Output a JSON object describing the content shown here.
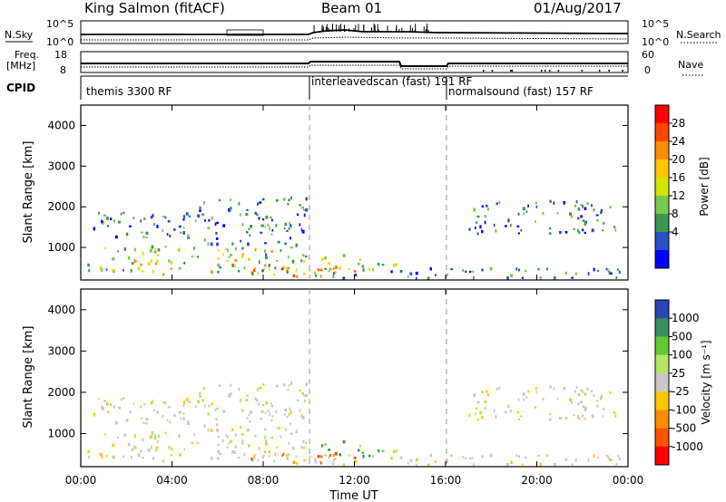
{
  "header": {
    "station": "King Salmon (fitACF)",
    "beam": "Beam 01",
    "date": "01/Aug/2017"
  },
  "summary_panel": {
    "nsky_label": "N.Sky",
    "nsearch_label": "N.Search",
    "noise_ticks": [
      "10^5",
      "10^0"
    ],
    "freq_label_1": "Freq.",
    "freq_label_2": "[MHz]",
    "freq_ticks": [
      "18",
      "8"
    ],
    "nave_label": "Nave",
    "nave_ticks": [
      "60",
      "0"
    ],
    "cpid_label": "CPID",
    "cpid_segments": [
      {
        "label": "themis 3300 RF",
        "start_hour": 0,
        "end_hour": 10
      },
      {
        "label": "interleavedscan (fast)  191 RF",
        "start_hour": 10,
        "end_hour": 16
      },
      {
        "label": "normalsound (fast) 157 RF",
        "start_hour": 16,
        "end_hour": 24
      }
    ]
  },
  "power_colorbar": {
    "title": "Power [dB]",
    "ticks": [
      "28",
      "24",
      "20",
      "16",
      "12",
      "8",
      "4"
    ],
    "colors": [
      "#ff0000",
      "#ff4500",
      "#ff8c00",
      "#ffc800",
      "#d2e600",
      "#78c850",
      "#3c9650",
      "#2850c8",
      "#0000ff"
    ]
  },
  "velocity_colorbar": {
    "title": "Velocity [m s⁻¹]",
    "ticks": [
      "1000",
      "500",
      "100",
      "25",
      "-25",
      "-100",
      "-500",
      "-1000"
    ],
    "colors": [
      "#2846b4",
      "#3c8c64",
      "#64c832",
      "#b4e664",
      "#c8c8c8",
      "#ffc800",
      "#ff8c00",
      "#ff5000",
      "#ff0000"
    ]
  },
  "chart_data": {
    "type": "heatmap",
    "title": "King Salmon (fitACF) Beam 01 01/Aug/2017",
    "xlabel": "Time UT",
    "ylabel": "Slant Range [km]",
    "xlim": [
      0,
      24
    ],
    "ylim": [
      200,
      4500
    ],
    "x_ticks": [
      "00:00",
      "04:00",
      "08:00",
      "12:00",
      "16:00",
      "20:00",
      "00:00"
    ],
    "y_ticks": [
      "1000",
      "2000",
      "3000",
      "4000"
    ],
    "mode_change_hours": [
      10,
      16
    ],
    "scatter_regions": [
      {
        "t0": 0.2,
        "t1": 10,
        "r0": 300,
        "r1": 1000,
        "power": "high",
        "velocity": "low"
      },
      {
        "t0": 0.5,
        "t1": 5,
        "r0": 1200,
        "r1": 1900,
        "power": "low",
        "velocity": "low"
      },
      {
        "t0": 5,
        "t1": 10,
        "r0": 1000,
        "r1": 2200,
        "power": "low",
        "velocity": "low"
      },
      {
        "t0": 7,
        "t1": 12,
        "r0": 250,
        "r1": 500,
        "power": "very high",
        "velocity": "negative"
      },
      {
        "t0": 10,
        "t1": 14,
        "r0": 400,
        "r1": 800,
        "power": "medium",
        "velocity": "positive"
      },
      {
        "t0": 10,
        "t1": 24,
        "r0": 200,
        "r1": 450,
        "power": "low",
        "velocity": "low"
      },
      {
        "t0": 17,
        "t1": 23.5,
        "r0": 1300,
        "r1": 2100,
        "power": "low",
        "velocity": "low"
      }
    ]
  }
}
